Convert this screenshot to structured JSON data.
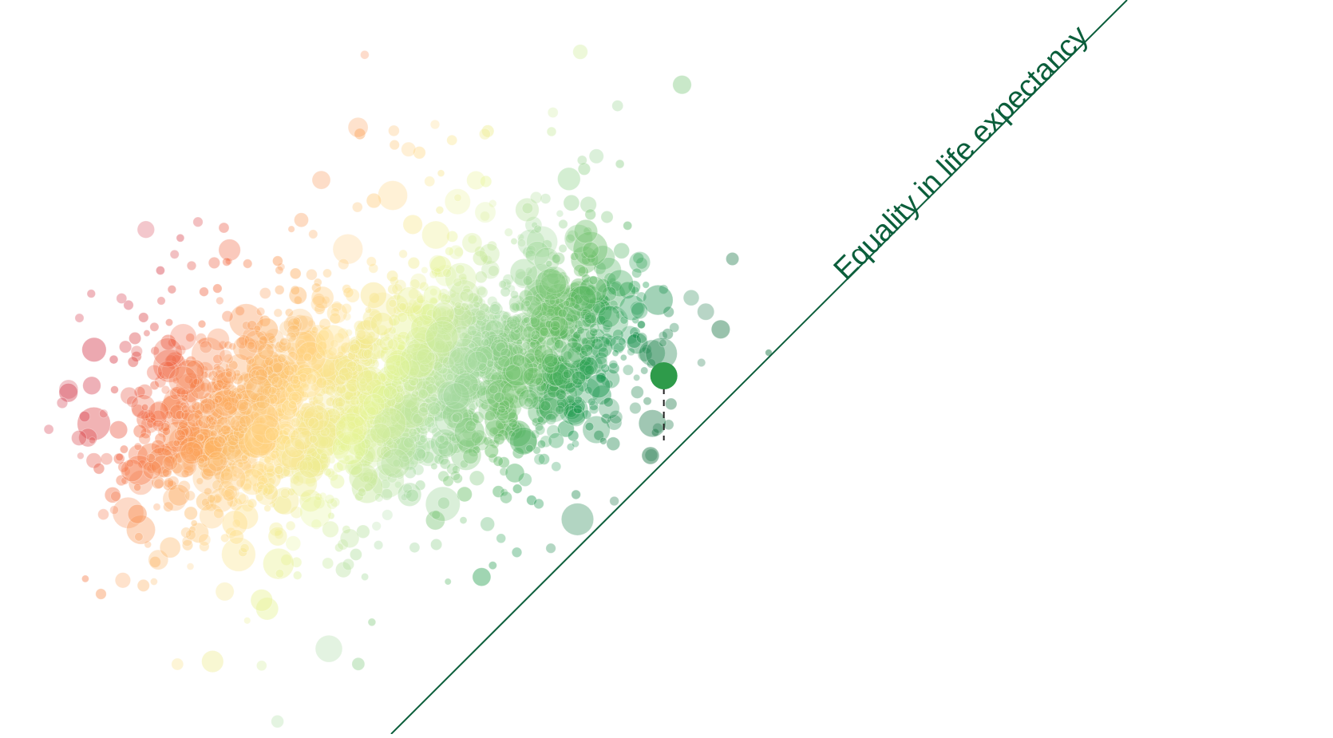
{
  "chart_data": {
    "type": "scatter",
    "title": "",
    "xlabel": "",
    "ylabel": "",
    "annotations": {
      "equality_line_label": "Equality in life expectancy"
    },
    "colors": {
      "equality_line": "#0b5e3b",
      "highlight_point": "#2e9b4a",
      "scale": [
        "#d53e4f",
        "#f46d43",
        "#fdae61",
        "#fee08b",
        "#e6f598",
        "#abdda4",
        "#66bd63",
        "#1a9850",
        "#0b6e3a"
      ]
    },
    "highlight": {
      "x": 0.498,
      "y": 0.512,
      "drop_to_y": 0.6
    },
    "cloud": {
      "count": 2600,
      "seed": 17
    }
  }
}
